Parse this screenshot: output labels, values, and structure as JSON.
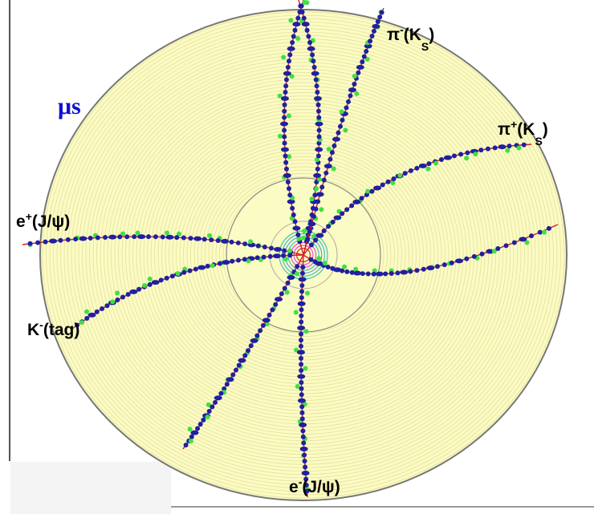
{
  "labels": [
    {
      "parts": [
        {
          "t": "μs"
        }
      ]
    },
    {
      "parts": [
        {
          "t": "π"
        },
        {
          "sup": "-"
        },
        {
          "t": "(K"
        },
        {
          "sub": "S"
        },
        {
          "t": ")"
        }
      ]
    },
    {
      "parts": [
        {
          "t": "π"
        },
        {
          "sup": "+"
        },
        {
          "t": "(K"
        },
        {
          "sub": "S"
        },
        {
          "t": ")"
        }
      ]
    },
    {
      "parts": [
        {
          "t": "e"
        },
        {
          "sup": "+"
        },
        {
          "t": "(J/ψ)"
        }
      ]
    },
    {
      "parts": [
        {
          "t": "K"
        },
        {
          "sup": "-"
        },
        {
          "t": "(tag)"
        }
      ]
    },
    {
      "parts": [
        {
          "t": "e"
        },
        {
          "sup": "-"
        },
        {
          "t": "(J/ψ)"
        }
      ]
    }
  ]
}
